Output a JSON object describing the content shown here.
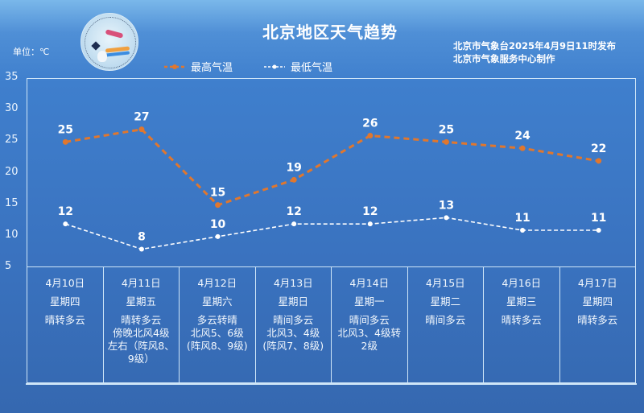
{
  "header": {
    "title": "北京地区天气趋势",
    "issuer_line1": "北京市气象台2025年4月9日11时发布",
    "issuer_line2": "北京市气象服务中心制作",
    "unit": "单位：℃",
    "logo": "meteorological-service-logo"
  },
  "legend": {
    "high_label": "最高气温",
    "low_label": "最低气温"
  },
  "colors": {
    "high": "#e0772e",
    "low": "#ffffff",
    "grid": "#cfe6f8",
    "background": "#3f7fcd"
  },
  "y_ticks": [
    "35",
    "30",
    "25",
    "20",
    "15",
    "10",
    "5"
  ],
  "days": [
    {
      "date": "4月10日",
      "weekday": "星期四",
      "condition": "晴转多云"
    },
    {
      "date": "4月11日",
      "weekday": "星期五",
      "condition": "晴转多云\n傍晚北风4级\n左右（阵风8、\n9级）"
    },
    {
      "date": "4月12日",
      "weekday": "星期六",
      "condition": "多云转晴\n北风5、6级\n(阵风8、9级)"
    },
    {
      "date": "4月13日",
      "weekday": "星期日",
      "condition": "晴间多云\n北风3、4级\n(阵风7、8级)"
    },
    {
      "date": "4月14日",
      "weekday": "星期一",
      "condition": "晴间多云\n北风3、4级转\n2级"
    },
    {
      "date": "4月15日",
      "weekday": "星期二",
      "condition": "晴间多云"
    },
    {
      "date": "4月16日",
      "weekday": "星期三",
      "condition": "晴转多云"
    },
    {
      "date": "4月17日",
      "weekday": "星期四",
      "condition": "晴转多云"
    }
  ],
  "chart_data": {
    "type": "line",
    "title": "北京地区天气趋势",
    "xlabel": "",
    "ylabel": "单位：℃",
    "ylim": [
      5,
      35
    ],
    "yticks": [
      5,
      10,
      15,
      20,
      25,
      30,
      35
    ],
    "grid": false,
    "legend_position": "top",
    "categories": [
      "4月10日",
      "4月11日",
      "4月12日",
      "4月13日",
      "4月14日",
      "4月15日",
      "4月16日",
      "4月17日"
    ],
    "series": [
      {
        "name": "最高气温",
        "color": "#e0772e",
        "style": "dashed",
        "values": [
          25,
          27,
          15,
          19,
          26,
          25,
          24,
          22
        ]
      },
      {
        "name": "最低气温",
        "color": "#ffffff",
        "style": "dashed",
        "values": [
          12,
          8,
          10,
          12,
          12,
          13,
          11,
          11
        ]
      }
    ]
  }
}
